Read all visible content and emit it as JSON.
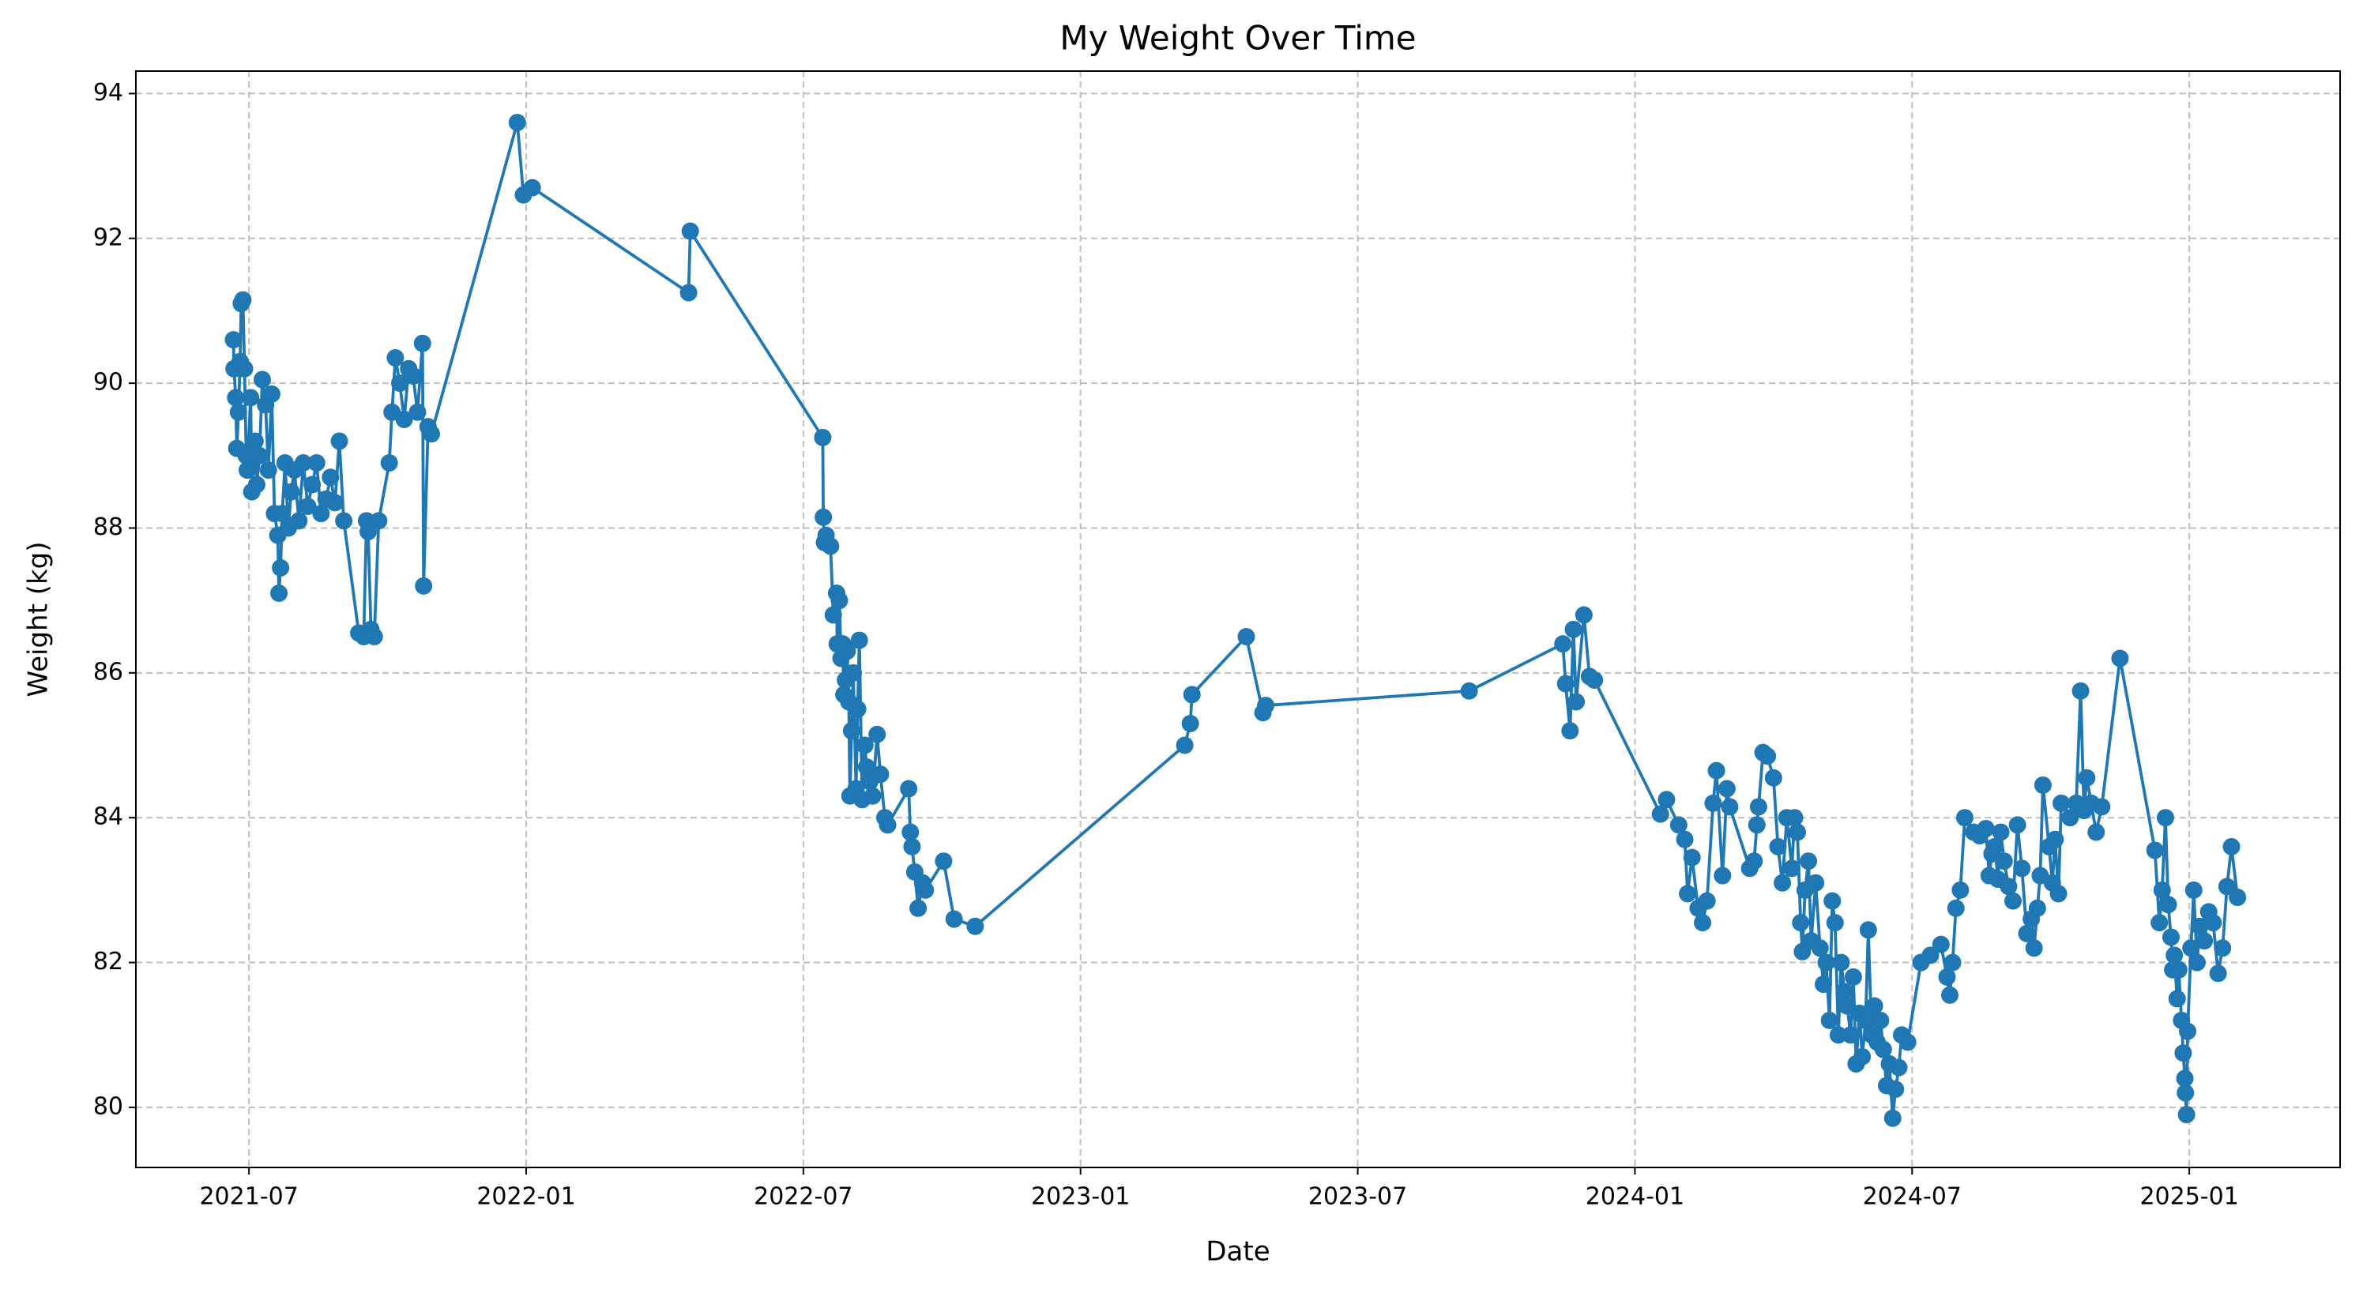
{
  "chart_data": {
    "type": "line",
    "title": "My Weight Over Time",
    "x_label": "Date",
    "y_label": "Weight (kg)",
    "color": "#1f77b4",
    "grid": true,
    "x": [
      2021.472,
      2021.473,
      2021.476,
      2021.478,
      2021.481,
      2021.484,
      2021.486,
      2021.489,
      2021.492,
      2021.495,
      2021.497,
      2021.503,
      2021.505,
      2021.511,
      2021.514,
      2021.519,
      2021.524,
      2021.53,
      2021.535,
      2021.541,
      2021.546,
      2021.552,
      2021.554,
      2021.557,
      2021.56,
      2021.565,
      2021.571,
      2021.576,
      2021.582,
      2021.59,
      2021.598,
      2021.606,
      2021.614,
      2021.622,
      2021.63,
      2021.639,
      2021.647,
      2021.655,
      2021.663,
      2021.671,
      2021.698,
      2021.707,
      2021.712,
      2021.715,
      2021.72,
      2021.726,
      2021.734,
      2021.753,
      2021.758,
      2021.764,
      2021.772,
      2021.78,
      2021.788,
      2021.796,
      2021.804,
      2021.813,
      2021.815,
      2021.823,
      2021.829,
      2021.984,
      2021.995,
      2022.011,
      2022.293,
      2022.296,
      2022.535,
      2022.536,
      2022.538,
      2022.541,
      2022.549,
      2022.554,
      2022.56,
      2022.561,
      2022.565,
      2022.568,
      2022.571,
      2022.573,
      2022.576,
      2022.579,
      2022.582,
      2022.584,
      2022.587,
      2022.59,
      2022.595,
      2022.598,
      2022.601,
      2022.606,
      2022.611,
      2022.614,
      2022.62,
      2022.625,
      2022.633,
      2022.639,
      2022.647,
      2022.652,
      2022.69,
      2022.693,
      2022.696,
      2022.701,
      2022.707,
      2022.715,
      2022.72,
      2022.753,
      2022.772,
      2022.81,
      2023.188,
      2023.198,
      2023.201,
      2023.299,
      2023.329,
      2023.334,
      2023.701,
      2023.87,
      2023.875,
      2023.883,
      2023.889,
      2023.894,
      2023.908,
      2023.918,
      2023.927,
      2024.046,
      2024.057,
      2024.079,
      2024.09,
      2024.095,
      2024.103,
      2024.114,
      2024.122,
      2024.13,
      2024.141,
      2024.147,
      2024.158,
      2024.166,
      2024.171,
      2024.207,
      2024.215,
      2024.22,
      2024.223,
      2024.231,
      2024.239,
      2024.25,
      2024.258,
      2024.266,
      2024.274,
      2024.283,
      2024.288,
      2024.293,
      2024.299,
      2024.302,
      2024.307,
      2024.313,
      2024.318,
      2024.326,
      2024.334,
      2024.34,
      2024.345,
      2024.351,
      2024.356,
      2024.361,
      2024.367,
      2024.372,
      2024.378,
      2024.383,
      2024.389,
      2024.394,
      2024.399,
      2024.405,
      2024.41,
      2024.416,
      2024.421,
      2024.427,
      2024.432,
      2024.437,
      2024.443,
      2024.448,
      2024.454,
      2024.459,
      2024.465,
      2024.47,
      2024.476,
      2024.481,
      2024.492,
      2024.516,
      2024.533,
      2024.552,
      2024.563,
      2024.568,
      2024.573,
      2024.579,
      2024.587,
      2024.595,
      2024.611,
      2024.622,
      2024.633,
      2024.639,
      2024.644,
      2024.649,
      2024.655,
      2024.66,
      2024.666,
      2024.674,
      2024.682,
      2024.69,
      2024.698,
      2024.707,
      2024.715,
      2024.72,
      2024.726,
      2024.731,
      2024.736,
      2024.747,
      2024.753,
      2024.758,
      2024.764,
      2024.769,
      2024.785,
      2024.796,
      2024.804,
      2024.81,
      2024.815,
      2024.823,
      2024.832,
      2024.842,
      2024.875,
      2024.938,
      2024.946,
      2024.951,
      2024.957,
      2024.962,
      2024.967,
      2024.97,
      2024.973,
      2024.978,
      2024.981,
      2024.986,
      2024.989,
      2024.992,
      2024.993,
      2024.995,
      2024.997,
      2025.003,
      2025.008,
      2025.014,
      2025.019,
      2025.027,
      2025.035,
      2025.043,
      2025.052,
      2025.06,
      2025.068,
      2025.076,
      2025.087
    ],
    "values": [
      90.6,
      90.2,
      89.8,
      89.1,
      89.6,
      90.3,
      91.1,
      91.15,
      90.2,
      89.0,
      88.8,
      89.8,
      88.5,
      89.2,
      88.6,
      89.0,
      90.05,
      89.7,
      88.8,
      89.85,
      88.2,
      87.9,
      87.1,
      87.45,
      88.2,
      88.9,
      88.0,
      88.5,
      88.8,
      88.1,
      88.9,
      88.3,
      88.6,
      88.9,
      88.2,
      88.4,
      88.7,
      88.35,
      89.2,
      88.1,
      86.55,
      86.5,
      88.1,
      87.95,
      86.6,
      86.5,
      88.1,
      88.9,
      89.6,
      90.35,
      90.0,
      89.5,
      90.2,
      90.1,
      89.6,
      90.55,
      87.2,
      89.4,
      89.3,
      93.6,
      92.6,
      92.7,
      91.25,
      92.1,
      89.25,
      88.15,
      87.8,
      87.9,
      87.75,
      86.8,
      87.1,
      86.4,
      87.0,
      86.2,
      86.4,
      85.7,
      85.9,
      86.3,
      85.6,
      84.3,
      85.2,
      86.0,
      84.4,
      85.5,
      86.45,
      84.25,
      85.0,
      84.7,
      84.5,
      84.3,
      85.15,
      84.6,
      84.0,
      83.9,
      84.4,
      83.8,
      83.6,
      83.25,
      82.75,
      83.1,
      83.0,
      83.4,
      82.6,
      82.5,
      85.0,
      85.3,
      85.7,
      86.5,
      85.45,
      85.55,
      85.75,
      86.4,
      85.85,
      85.2,
      86.6,
      85.6,
      86.8,
      85.95,
      85.9,
      84.05,
      84.25,
      83.9,
      83.7,
      82.95,
      83.45,
      82.75,
      82.55,
      82.85,
      84.2,
      84.65,
      83.2,
      84.4,
      84.15,
      83.3,
      83.4,
      83.9,
      84.15,
      84.9,
      84.85,
      84.55,
      83.6,
      83.1,
      84.0,
      83.3,
      84.0,
      83.8,
      82.55,
      82.15,
      83.0,
      83.4,
      82.3,
      83.1,
      82.2,
      81.7,
      82.0,
      81.2,
      82.85,
      82.55,
      81.0,
      82.0,
      81.6,
      81.4,
      81.0,
      81.8,
      80.6,
      81.3,
      80.7,
      81.2,
      82.45,
      81.0,
      81.4,
      80.9,
      81.2,
      80.8,
      80.3,
      80.6,
      79.85,
      80.25,
      80.55,
      81.0,
      80.9,
      82.0,
      82.1,
      82.25,
      81.8,
      81.55,
      82.0,
      82.75,
      83.0,
      84.0,
      83.8,
      83.75,
      83.85,
      83.2,
      83.5,
      83.6,
      83.15,
      83.8,
      83.4,
      83.05,
      82.85,
      83.9,
      83.3,
      82.4,
      82.6,
      82.2,
      82.75,
      83.2,
      84.45,
      83.6,
      83.1,
      83.7,
      82.95,
      84.2,
      84.0,
      84.2,
      85.75,
      84.1,
      84.55,
      84.2,
      83.8,
      84.15,
      86.2,
      83.55,
      82.55,
      83.0,
      84.0,
      82.8,
      82.35,
      81.9,
      82.1,
      81.5,
      81.9,
      81.2,
      80.75,
      80.4,
      80.2,
      79.9,
      81.05,
      82.2,
      83.0,
      82.0,
      82.5,
      82.3,
      82.7,
      82.55,
      81.85,
      82.2,
      83.05,
      83.6,
      82.9
    ],
    "xlim": [
      2021.296,
      2025.272
    ],
    "xticks": [
      {
        "value": 2021.5,
        "label": "2021-07"
      },
      {
        "value": 2022.0,
        "label": "2022-01"
      },
      {
        "value": 2022.5,
        "label": "2022-07"
      },
      {
        "value": 2023.0,
        "label": "2023-01"
      },
      {
        "value": 2023.5,
        "label": "2023-07"
      },
      {
        "value": 2024.0,
        "label": "2024-01"
      },
      {
        "value": 2024.5,
        "label": "2024-07"
      },
      {
        "value": 2025.0,
        "label": "2025-01"
      }
    ],
    "ylim": [
      79.17,
      94.31
    ],
    "yticks": [
      80,
      82,
      84,
      86,
      88,
      90,
      92,
      94
    ]
  }
}
